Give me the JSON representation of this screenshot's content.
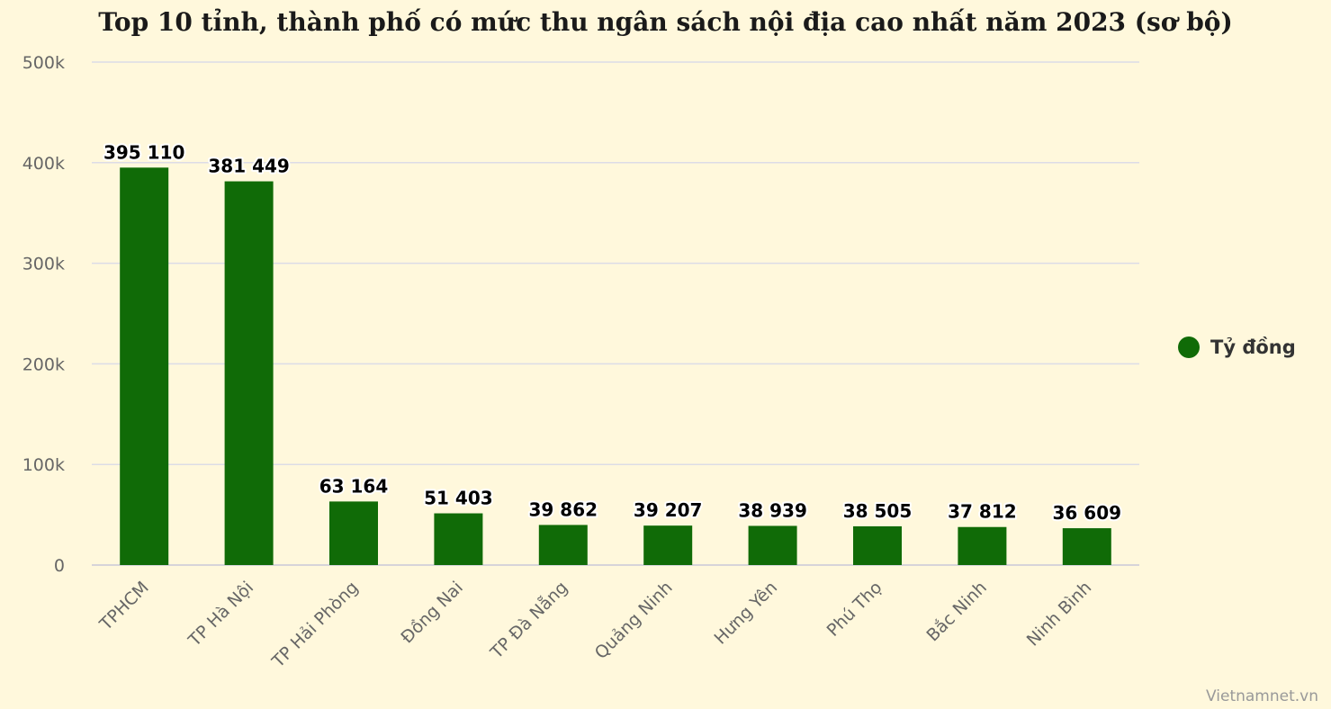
{
  "chart_data": {
    "type": "bar",
    "title": "Top 10 tỉnh, thành phố có mức thu ngân sách nội địa cao nhất năm 2023 (sơ bộ)",
    "categories": [
      "TPHCM",
      "TP Hà Nội",
      "TP Hải Phòng",
      "Đồng Nai",
      "TP Đà Nẵng",
      "Quảng Ninh",
      "Hưng Yên",
      "Phú Thọ",
      "Bắc Ninh",
      "Ninh Bình"
    ],
    "series": [
      {
        "name": "Tỷ đồng",
        "values": [
          395110,
          381449,
          63164,
          51403,
          39862,
          39207,
          38939,
          38505,
          37812,
          36609
        ],
        "labels": [
          "395 110",
          "381 449",
          "63 164",
          "51 403",
          "39 862",
          "39 207",
          "38 939",
          "38 505",
          "37 812",
          "36 609"
        ]
      }
    ],
    "ylim": [
      0,
      500000
    ],
    "yticks": [
      0,
      100000,
      200000,
      300000,
      400000,
      500000
    ],
    "ytick_labels": [
      "0",
      "100k",
      "200k",
      "300k",
      "400k",
      "500k"
    ],
    "grid": true,
    "legend_position": "right",
    "bar_color": "#106b07"
  },
  "credit": "Vietnamnet.vn"
}
